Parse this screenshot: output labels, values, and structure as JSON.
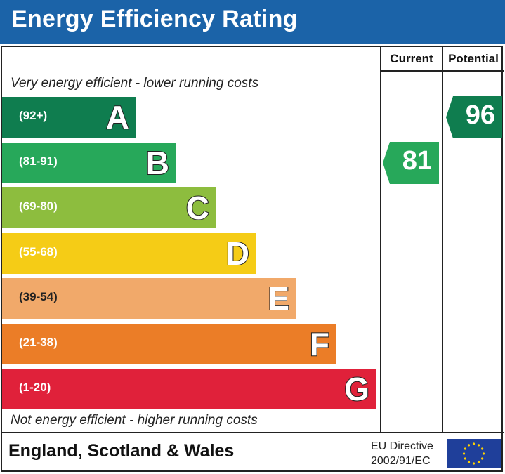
{
  "header": {
    "title": "Energy Efficiency Rating"
  },
  "columns": {
    "current": "Current",
    "potential": "Potential"
  },
  "notes": {
    "top": "Very energy efficient - lower running costs",
    "bottom": "Not energy efficient - higher running costs"
  },
  "footer": {
    "region": "England, Scotland & Wales",
    "directive_line1": "EU Directive",
    "directive_line2": "2002/91/EC",
    "flag_icon": "eu-flag-icon"
  },
  "chart_data": {
    "type": "bar",
    "title": "Energy Efficiency Rating",
    "categories": [
      "A",
      "B",
      "C",
      "D",
      "E",
      "F",
      "G"
    ],
    "bands": [
      {
        "letter": "A",
        "range": "(92+)",
        "color": "#0f7d4f"
      },
      {
        "letter": "B",
        "range": "(81-91)",
        "color": "#27a85a"
      },
      {
        "letter": "C",
        "range": "(69-80)",
        "color": "#8dbd3e"
      },
      {
        "letter": "D",
        "range": "(55-68)",
        "color": "#f5cc16"
      },
      {
        "letter": "E",
        "range": "(39-54)",
        "color": "#f1a96a"
      },
      {
        "letter": "F",
        "range": "(21-38)",
        "color": "#eb7d27"
      },
      {
        "letter": "G",
        "range": "(1-20)",
        "color": "#e0213a"
      }
    ],
    "current": {
      "value": 81,
      "band": "B",
      "color": "#27a85a"
    },
    "potential": {
      "value": 96,
      "band": "A",
      "color": "#0f7d4f"
    }
  }
}
